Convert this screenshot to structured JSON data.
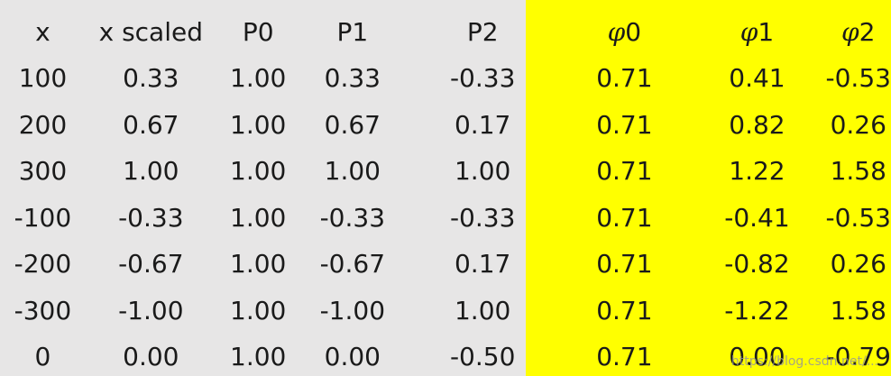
{
  "table": {
    "headers": {
      "x": "x",
      "x_scaled": "x scaled",
      "p0": "P0",
      "p1": "P1",
      "p2": "P2",
      "phi0_sym": "φ",
      "phi0_num": "0",
      "phi1_sym": "φ",
      "phi1_num": "1",
      "phi2_sym": "φ",
      "phi2_num": "2"
    },
    "rows": [
      [
        "100",
        "0.33",
        "1.00",
        "0.33",
        "-0.33",
        "0.71",
        "0.41",
        "-0.53"
      ],
      [
        "200",
        "0.67",
        "1.00",
        "0.67",
        "0.17",
        "0.71",
        "0.82",
        "0.26"
      ],
      [
        "300",
        "1.00",
        "1.00",
        "1.00",
        "1.00",
        "0.71",
        "1.22",
        "1.58"
      ],
      [
        "-100",
        "-0.33",
        "1.00",
        "-0.33",
        "-0.33",
        "0.71",
        "-0.41",
        "-0.53"
      ],
      [
        "-200",
        "-0.67",
        "1.00",
        "-0.67",
        "0.17",
        "0.71",
        "-0.82",
        "0.26"
      ],
      [
        "-300",
        "-1.00",
        "1.00",
        "-1.00",
        "1.00",
        "0.71",
        "-1.22",
        "1.58"
      ],
      [
        "0",
        "0.00",
        "1.00",
        "0.00",
        "-0.50",
        "0.71",
        "0.00",
        "-0.79"
      ]
    ]
  },
  "colors": {
    "basis_panel": "#e7e6e6",
    "phi_highlight": "#ffff00"
  },
  "watermark": "https://blog.csdn.net/..."
}
